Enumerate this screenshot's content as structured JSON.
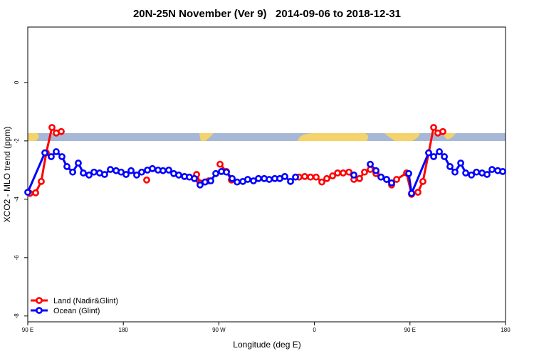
{
  "chart_data": {
    "type": "line",
    "title": "20N-25N November (Ver 9)   2014-09-06 to 2018-12-31",
    "x_label": "Longitude (deg E)",
    "y_label": "XCO2 - MLO trend (ppm)",
    "xlim": [
      90,
      540
    ],
    "xticks": [
      {
        "value": 90,
        "label": "90 E"
      },
      180,
      {
        "value": 270,
        "label": "90 W"
      },
      {
        "value": 360,
        "label": "0"
      },
      {
        "value": 450,
        "label": "90 E"
      },
      {
        "value": 540,
        "label": "180"
      }
    ],
    "ylim": [
      -8.2,
      1.9
    ],
    "yticks": [
      0,
      -2,
      -4,
      -6,
      -8
    ],
    "legend": "bottom-left",
    "series": [
      {
        "name": "Land (Nadir&Glint)",
        "color": "#ff0000",
        "x": [
          92.0,
          97.4,
          102.7,
          107.4,
          112.8,
          116.8,
          121.5,
          150,
          202.0,
          240,
          249.0,
          252.3,
          257.0,
          260.4,
          263,
          271.1,
          277.1,
          281.8,
          300,
          345.5,
          350.9,
          356.3,
          361.6,
          367.0,
          371.7,
          377.1,
          381.8,
          387.1,
          392.5,
          397.2,
          402.5,
          407.2,
          412.6,
          418.0,
          422.7,
          428.0,
          432.7,
          437.4,
          446.8,
          451.5,
          457.5,
          462.2,
          467.6,
          472.3,
          476.3,
          481.0
        ],
        "values": [
          -3.8,
          -3.78,
          -3.39,
          -2.41,
          -1.54,
          -1.73,
          -1.68,
          null,
          -3.34,
          null,
          -3.15,
          -3.44,
          -3.41,
          -3.37,
          null,
          -2.8,
          -3.05,
          -3.34,
          null,
          -3.24,
          -3.22,
          -3.24,
          -3.24,
          -3.41,
          -3.29,
          -3.2,
          -3.1,
          -3.1,
          -3.07,
          -3.32,
          -3.29,
          -3.07,
          -2.98,
          -3.12,
          -3.24,
          -3.32,
          -3.51,
          -3.32,
          -3.1,
          -3.83,
          -3.76,
          -3.39,
          -2.41,
          -1.54,
          -1.73,
          -1.68
        ]
      },
      {
        "name": "Ocean (Glint)",
        "color": "#0000ff",
        "x": [
          90.0,
          106.1,
          112.1,
          116.8,
          122.2,
          126.9,
          132.3,
          137.6,
          142.3,
          147.7,
          152.4,
          157.7,
          162.4,
          167.8,
          173.2,
          177.9,
          182.6,
          187.3,
          192.6,
          197.3,
          202.7,
          207.4,
          212.7,
          217.4,
          222.8,
          227.5,
          232.2,
          237.6,
          242.2,
          246.9,
          252.3,
          257.0,
          262.4,
          267.1,
          272.4,
          277.1,
          282.5,
          287.2,
          292.6,
          297.2,
          302.6,
          307.3,
          312.7,
          317.4,
          322.7,
          327.4,
          332.1,
          337.5,
          342.2,
          380,
          397.2,
          405,
          412.6,
          418.0,
          422.7,
          428.0,
          432.7,
          440,
          448.8,
          451.5,
          467.6,
          472.3,
          477.7,
          482.4,
          487.7,
          492.4,
          497.8,
          502.5,
          507.9,
          512.6,
          517.9,
          522.6,
          527.3,
          532.7,
          537.4
        ],
        "values": [
          -3.76,
          -2.41,
          -2.54,
          -2.37,
          -2.54,
          -2.88,
          -3.07,
          -2.76,
          -3.1,
          -3.17,
          -3.07,
          -3.1,
          -3.15,
          -2.98,
          -3.02,
          -3.07,
          -3.15,
          -3.02,
          -3.17,
          -3.07,
          -3.0,
          -2.95,
          -3.0,
          -3.02,
          -3.0,
          -3.12,
          -3.17,
          -3.22,
          -3.24,
          -3.29,
          -3.51,
          -3.41,
          -3.37,
          -3.12,
          -3.05,
          -3.07,
          -3.29,
          -3.41,
          -3.39,
          -3.32,
          -3.37,
          -3.29,
          -3.29,
          -3.32,
          -3.29,
          -3.29,
          -3.22,
          -3.39,
          -3.24,
          null,
          -3.17,
          null,
          -2.8,
          -3.02,
          -3.24,
          -3.32,
          -3.44,
          null,
          -3.12,
          -3.8,
          -2.41,
          -2.54,
          -2.37,
          -2.54,
          -2.88,
          -3.07,
          -2.76,
          -3.1,
          -3.17,
          -3.07,
          -3.1,
          -3.15,
          -2.98,
          -3.02,
          -3.05
        ]
      }
    ]
  }
}
